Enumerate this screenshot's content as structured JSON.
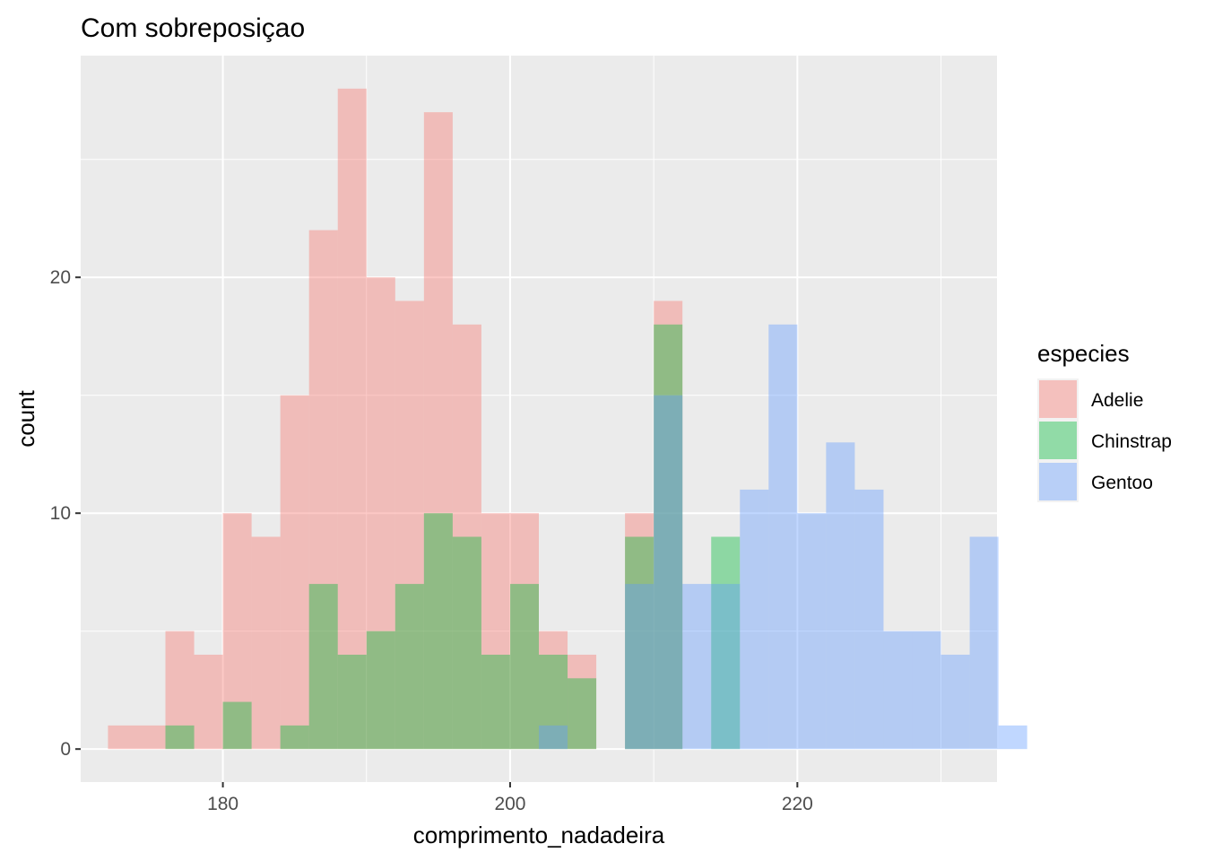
{
  "chart_data": {
    "type": "bar",
    "subtype": "overlapping-histogram",
    "title": "Com sobreposiçao",
    "xlabel": "comprimento_nadadeira",
    "ylabel": "count",
    "xlim": [
      170.1,
      233.9
    ],
    "ylim": [
      -1.4,
      29.4
    ],
    "x_ticks": [
      180,
      200,
      220
    ],
    "y_ticks": [
      0,
      10,
      20
    ],
    "x_tick_labels": [
      "180",
      "200",
      "220"
    ],
    "y_tick_labels": [
      "0",
      "10",
      "20"
    ],
    "bin_start": 172.0,
    "bin_width": 2.0,
    "grid": true,
    "legend_position": "right",
    "legend": {
      "title": "especies",
      "entries": [
        "Adelie",
        "Chinstrap",
        "Gentoo"
      ]
    },
    "series": [
      {
        "name": "Adelie",
        "color": "#F8766D",
        "values": [
          1,
          1,
          5,
          4,
          10,
          9,
          15,
          22,
          28,
          20,
          19,
          27,
          18,
          10,
          10,
          5,
          4,
          0,
          10,
          19
        ]
      },
      {
        "name": "Chinstrap",
        "color": "#00BA38",
        "values": [
          0,
          0,
          1,
          0,
          2,
          0,
          1,
          7,
          4,
          5,
          7,
          10,
          9,
          4,
          7,
          4,
          3,
          0,
          9,
          18,
          0,
          9
        ]
      },
      {
        "name": "Gentoo",
        "color": "#619CFF",
        "values": [
          0,
          0,
          0,
          0,
          0,
          0,
          0,
          0,
          0,
          0,
          0,
          0,
          0,
          0,
          0,
          1,
          0,
          0,
          7,
          15,
          7,
          7,
          11,
          18,
          10,
          13,
          11,
          5,
          5,
          4,
          9,
          1
        ]
      }
    ]
  }
}
